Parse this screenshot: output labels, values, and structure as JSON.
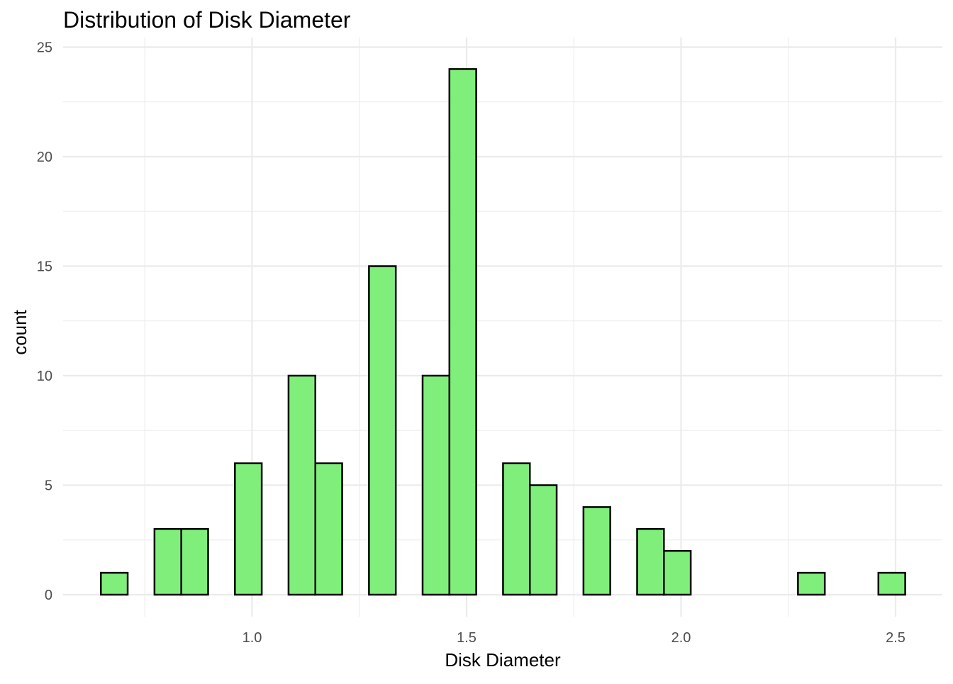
{
  "chart_data": {
    "type": "bar",
    "title": "Distribution of Disk Diameter",
    "xlabel": "Disk Diameter",
    "ylabel": "count",
    "xlim": [
      0.625,
      2.525
    ],
    "ylim": [
      0,
      25
    ],
    "bin_width": 0.0625,
    "bins": [
      {
        "start": 0.6475,
        "end": 0.71,
        "count": 1
      },
      {
        "start": 0.71,
        "end": 0.7725,
        "count": 0
      },
      {
        "start": 0.7725,
        "end": 0.835,
        "count": 3
      },
      {
        "start": 0.835,
        "end": 0.8975,
        "count": 3
      },
      {
        "start": 0.8975,
        "end": 0.96,
        "count": 0
      },
      {
        "start": 0.96,
        "end": 1.0225,
        "count": 6
      },
      {
        "start": 1.0225,
        "end": 1.085,
        "count": 0
      },
      {
        "start": 1.085,
        "end": 1.1475,
        "count": 10
      },
      {
        "start": 1.1475,
        "end": 1.21,
        "count": 6
      },
      {
        "start": 1.21,
        "end": 1.2725,
        "count": 0
      },
      {
        "start": 1.2725,
        "end": 1.335,
        "count": 15
      },
      {
        "start": 1.335,
        "end": 1.3975,
        "count": 0
      },
      {
        "start": 1.3975,
        "end": 1.46,
        "count": 10
      },
      {
        "start": 1.46,
        "end": 1.5225,
        "count": 24
      },
      {
        "start": 1.5225,
        "end": 1.585,
        "count": 0
      },
      {
        "start": 1.585,
        "end": 1.6475,
        "count": 6
      },
      {
        "start": 1.6475,
        "end": 1.71,
        "count": 5
      },
      {
        "start": 1.71,
        "end": 1.7725,
        "count": 0
      },
      {
        "start": 1.7725,
        "end": 1.835,
        "count": 4
      },
      {
        "start": 1.835,
        "end": 1.8975,
        "count": 0
      },
      {
        "start": 1.8975,
        "end": 1.96,
        "count": 3
      },
      {
        "start": 1.96,
        "end": 2.0225,
        "count": 2
      },
      {
        "start": 2.0225,
        "end": 2.085,
        "count": 0
      },
      {
        "start": 2.085,
        "end": 2.1475,
        "count": 0
      },
      {
        "start": 2.1475,
        "end": 2.21,
        "count": 0
      },
      {
        "start": 2.21,
        "end": 2.2725,
        "count": 0
      },
      {
        "start": 2.2725,
        "end": 2.335,
        "count": 1
      },
      {
        "start": 2.335,
        "end": 2.3975,
        "count": 0
      },
      {
        "start": 2.3975,
        "end": 2.46,
        "count": 0
      },
      {
        "start": 2.46,
        "end": 2.5225,
        "count": 1
      }
    ],
    "x_ticks": [
      {
        "value": 1.0,
        "label": "1.0"
      },
      {
        "value": 1.5,
        "label": "1.5"
      },
      {
        "value": 2.0,
        "label": "2.0"
      },
      {
        "value": 2.5,
        "label": "2.5"
      }
    ],
    "x_minor_ticks": [
      0.75,
      1.25,
      1.75,
      2.25
    ],
    "y_ticks": [
      {
        "value": 0,
        "label": "0"
      },
      {
        "value": 5,
        "label": "5"
      },
      {
        "value": 10,
        "label": "10"
      },
      {
        "value": 15,
        "label": "15"
      },
      {
        "value": 20,
        "label": "20"
      },
      {
        "value": 25,
        "label": "25"
      }
    ],
    "y_minor_ticks": [
      2.5,
      7.5,
      12.5,
      17.5,
      22.5
    ],
    "grid": true,
    "legend": "none",
    "fill_color": "#80ee7b",
    "outline_color": "#000000",
    "background_color": "#ffffff",
    "grid_color": "#ebebeb"
  }
}
